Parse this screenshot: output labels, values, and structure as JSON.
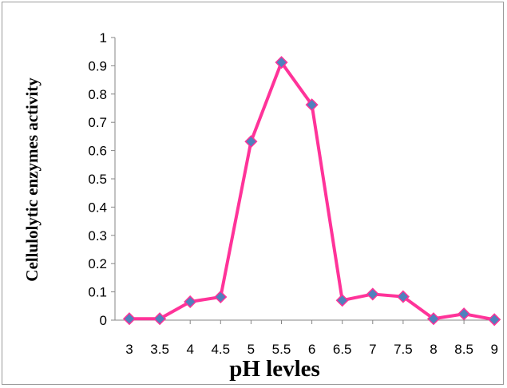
{
  "chart_data": {
    "type": "line",
    "title": "",
    "xlabel": "pH levles",
    "ylabel": "Cellulolytic enzymes activity",
    "categories": [
      "3",
      "3.5",
      "4",
      "4.5",
      "5",
      "5.5",
      "6",
      "6.5",
      "7",
      "7.5",
      "8",
      "8.5",
      "9"
    ],
    "y_ticks": [
      "0",
      "0.1",
      "0.2",
      "0.3",
      "0.4",
      "0.5",
      "0.6",
      "0.7",
      "0.8",
      "0.9",
      "1"
    ],
    "ylim": [
      0,
      1
    ],
    "grid": false,
    "legend": "none",
    "series": [
      {
        "values": [
          0.005,
          0.005,
          0.065,
          0.082,
          0.632,
          0.912,
          0.762,
          0.07,
          0.092,
          0.083,
          0.005,
          0.022,
          0.002
        ],
        "line_color": "#ff3399",
        "marker_color": "#4f81bd",
        "marker": "diamond"
      }
    ]
  }
}
